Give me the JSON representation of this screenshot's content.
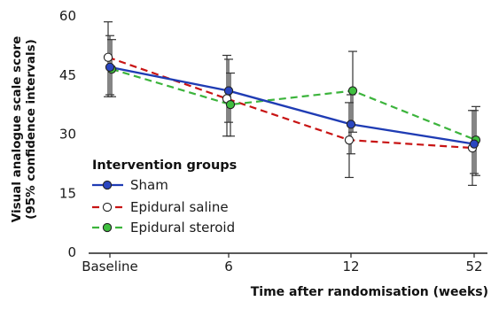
{
  "chart_data": {
    "type": "line",
    "categories": [
      "Baseline",
      "6",
      "12",
      "52"
    ],
    "xlabel": "Time after randomisation (weeks)",
    "ylabel": [
      "Visual analogue scale score",
      "(95% confidence intervals)"
    ],
    "ylim": [
      0,
      60
    ],
    "yticks": [
      0,
      15,
      30,
      45,
      60
    ],
    "legend_title": "Intervention groups",
    "legend_position": "bottom-left",
    "grid": false,
    "series": [
      {
        "name": "Sham",
        "color": "#1f3cb4",
        "marker_fill": "#2a46c0",
        "line_style": "solid",
        "values": [
          47,
          41,
          32.5,
          27.5
        ],
        "ci_low": [
          40,
          33,
          25,
          20
        ],
        "ci_high": [
          55,
          49,
          40,
          36
        ]
      },
      {
        "name": "Epidural saline",
        "color": "#c81414",
        "marker_fill": "#ffffff",
        "line_style": "dashed",
        "values": [
          49.5,
          39,
          28.5,
          26.5
        ],
        "ci_low": [
          39.5,
          29.5,
          19,
          17
        ],
        "ci_high": [
          58.5,
          50,
          38,
          36
        ]
      },
      {
        "name": "Epidural steroid",
        "color": "#3cb43c",
        "marker_fill": "#3fbf3f",
        "line_style": "dashed",
        "values": [
          46.5,
          37.5,
          41,
          28.5
        ],
        "ci_low": [
          39.5,
          29.5,
          30.5,
          19.5
        ],
        "ci_high": [
          54,
          45.5,
          51,
          37
        ]
      }
    ]
  }
}
